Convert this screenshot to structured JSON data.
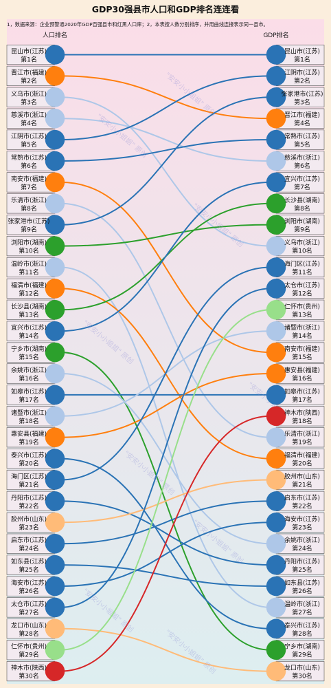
{
  "chart_data": {
    "type": "bump",
    "title": "GDP30强县市人口和GDP排名连连看",
    "note": "1，数据来源：企业预警通2020年GDP百强县市和红黑人口库；2，本表按人数分别排序，并用曲线连接表示同一县市。",
    "left_header": "人口排名",
    "right_header": "GDP排名",
    "watermark": "\"安安小小姐姐\" 原创",
    "colors": {
      "江苏": "#2a73b5",
      "福建": "#ff7f0e",
      "浙江": "#aec7e8",
      "湖南": "#2ca02c",
      "山东": "#ffbb78",
      "贵州": "#98df8a",
      "陕西": "#d62728"
    },
    "left": [
      {
        "name": "昆山市(江苏)",
        "rank": "第1名",
        "province": "江苏"
      },
      {
        "name": "晋江市(福建)",
        "rank": "第2名",
        "province": "福建"
      },
      {
        "name": "义乌市(浙江)",
        "rank": "第3名",
        "province": "浙江"
      },
      {
        "name": "慈溪市(浙江)",
        "rank": "第4名",
        "province": "浙江"
      },
      {
        "name": "江阴市(江苏)",
        "rank": "第5名",
        "province": "江苏"
      },
      {
        "name": "常熟市(江苏)",
        "rank": "第6名",
        "province": "江苏"
      },
      {
        "name": "南安市(福建)",
        "rank": "第7名",
        "province": "福建"
      },
      {
        "name": "乐清市(浙江)",
        "rank": "第8名",
        "province": "浙江"
      },
      {
        "name": "张家港市(江苏)",
        "rank": "第9名",
        "province": "江苏"
      },
      {
        "name": "浏阳市(湖南)",
        "rank": "第10名",
        "province": "湖南"
      },
      {
        "name": "温岭市(浙江)",
        "rank": "第11名",
        "province": "浙江"
      },
      {
        "name": "福清市(福建)",
        "rank": "第12名",
        "province": "福建"
      },
      {
        "name": "长沙县(湖南)",
        "rank": "第13名",
        "province": "湖南"
      },
      {
        "name": "宜兴市(江苏)",
        "rank": "第14名",
        "province": "江苏"
      },
      {
        "name": "宁乡市(湖南)",
        "rank": "第15名",
        "province": "湖南"
      },
      {
        "name": "余姚市(浙江)",
        "rank": "第16名",
        "province": "浙江"
      },
      {
        "name": "如皋市(江苏)",
        "rank": "第17名",
        "province": "江苏"
      },
      {
        "name": "诸暨市(浙江)",
        "rank": "第18名",
        "province": "浙江"
      },
      {
        "name": "惠安县(福建)",
        "rank": "第19名",
        "province": "福建"
      },
      {
        "name": "泰兴市(江苏)",
        "rank": "第20名",
        "province": "江苏"
      },
      {
        "name": "海门区(江苏)",
        "rank": "第21名",
        "province": "江苏"
      },
      {
        "name": "丹阳市(江苏)",
        "rank": "第22名",
        "province": "江苏"
      },
      {
        "name": "胶州市(山东)",
        "rank": "第23名",
        "province": "山东"
      },
      {
        "name": "启东市(江苏)",
        "rank": "第24名",
        "province": "江苏"
      },
      {
        "name": "如东县(江苏)",
        "rank": "第25名",
        "province": "江苏"
      },
      {
        "name": "海安市(江苏)",
        "rank": "第26名",
        "province": "江苏"
      },
      {
        "name": "太仓市(江苏)",
        "rank": "第27名",
        "province": "江苏"
      },
      {
        "name": "龙口市(山东)",
        "rank": "第28名",
        "province": "山东"
      },
      {
        "name": "仁怀市(贵州)",
        "rank": "第29名",
        "province": "贵州"
      },
      {
        "name": "神木市(陕西)",
        "rank": "第30名",
        "province": "陕西"
      }
    ],
    "right": [
      {
        "name": "昆山市(江苏)",
        "rank": "第1名",
        "province": "江苏"
      },
      {
        "name": "江阴市(江苏)",
        "rank": "第2名",
        "province": "江苏"
      },
      {
        "name": "张家港市(江苏)",
        "rank": "第3名",
        "province": "江苏"
      },
      {
        "name": "晋江市(福建)",
        "rank": "第4名",
        "province": "福建"
      },
      {
        "name": "常熟市(江苏)",
        "rank": "第5名",
        "province": "江苏"
      },
      {
        "name": "慈溪市(浙江)",
        "rank": "第6名",
        "province": "浙江"
      },
      {
        "name": "宜兴市(江苏)",
        "rank": "第7名",
        "province": "江苏"
      },
      {
        "name": "长沙县(湖南)",
        "rank": "第8名",
        "province": "湖南"
      },
      {
        "name": "浏阳市(湖南)",
        "rank": "第9名",
        "province": "湖南"
      },
      {
        "name": "义乌市(浙江)",
        "rank": "第10名",
        "province": "浙江"
      },
      {
        "name": "海门区(江苏)",
        "rank": "第11名",
        "province": "江苏"
      },
      {
        "name": "太仓市(江苏)",
        "rank": "第12名",
        "province": "江苏"
      },
      {
        "name": "仁怀市(贵州)",
        "rank": "第13名",
        "province": "贵州"
      },
      {
        "name": "诸暨市(浙江)",
        "rank": "第14名",
        "province": "浙江"
      },
      {
        "name": "南安市(福建)",
        "rank": "第15名",
        "province": "福建"
      },
      {
        "name": "惠安县(福建)",
        "rank": "第16名",
        "province": "福建"
      },
      {
        "name": "如皋市(江苏)",
        "rank": "第17名",
        "province": "江苏"
      },
      {
        "name": "神木市(陕西)",
        "rank": "第18名",
        "province": "陕西"
      },
      {
        "name": "乐清市(浙江)",
        "rank": "第19名",
        "province": "浙江"
      },
      {
        "name": "福清市(福建)",
        "rank": "第20名",
        "province": "福建"
      },
      {
        "name": "胶州市(山东)",
        "rank": "第21名",
        "province": "山东"
      },
      {
        "name": "启东市(江苏)",
        "rank": "第22名",
        "province": "江苏"
      },
      {
        "name": "海安市(江苏)",
        "rank": "第23名",
        "province": "江苏"
      },
      {
        "name": "余姚市(浙江)",
        "rank": "第24名",
        "province": "浙江"
      },
      {
        "name": "丹阳市(江苏)",
        "rank": "第25名",
        "province": "江苏"
      },
      {
        "name": "如东县(江苏)",
        "rank": "第26名",
        "province": "江苏"
      },
      {
        "name": "温岭市(浙江)",
        "rank": "第27名",
        "province": "浙江"
      },
      {
        "name": "泰兴市(江苏)",
        "rank": "第28名",
        "province": "江苏"
      },
      {
        "name": "宁乡市(湖南)",
        "rank": "第29名",
        "province": "湖南"
      },
      {
        "name": "龙口市(山东)",
        "rank": "第30名",
        "province": "山东"
      }
    ]
  }
}
